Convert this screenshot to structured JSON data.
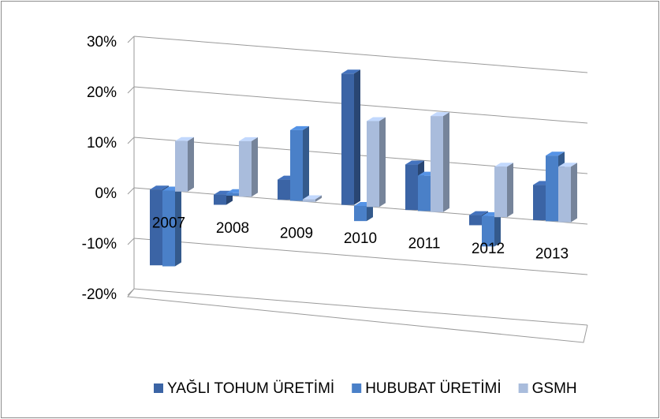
{
  "chart_data": {
    "type": "bar3d",
    "categories": [
      "2007",
      "2008",
      "2009",
      "2010",
      "2011",
      "2012",
      "2013"
    ],
    "series": [
      {
        "name": "YAĞLI TOHUM ÜRETİMİ",
        "color": "#3b64a5",
        "values": [
          -15,
          -2,
          4,
          26,
          9,
          -2,
          7
        ]
      },
      {
        "name": "HUBUBAT ÜRETİMİ",
        "color": "#4a80c8",
        "values": [
          -15,
          0.5,
          14,
          -3,
          7,
          -6,
          13
        ]
      },
      {
        "name": "GSMH",
        "color": "#a9bcdc",
        "values": [
          10,
          11,
          0.5,
          17,
          19,
          10,
          11
        ]
      }
    ],
    "ylim": [
      -20,
      30
    ],
    "yticks": [
      {
        "value": -20,
        "label": "-20%"
      },
      {
        "value": -10,
        "label": "-10%"
      },
      {
        "value": 0,
        "label": "0%"
      },
      {
        "value": 10,
        "label": "10%"
      },
      {
        "value": 20,
        "label": "20%"
      },
      {
        "value": 30,
        "label": "30%"
      }
    ],
    "grid": true,
    "legend": "bottom"
  }
}
